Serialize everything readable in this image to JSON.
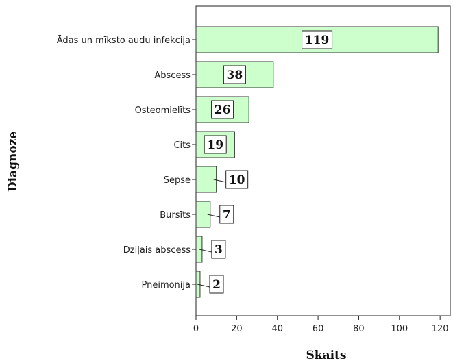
{
  "chart_data": {
    "type": "bar",
    "orientation": "horizontal",
    "categories": [
      "Ādas un mīksto audu infekcija",
      "Abscess",
      "Osteomielīts",
      "Cits",
      "Sepse",
      "Bursīts",
      "Dziļais abscess",
      "Pneimonija"
    ],
    "values": [
      119,
      38,
      26,
      19,
      10,
      7,
      3,
      2
    ],
    "xlabel": "Skaits",
    "ylabel": "Diagnoze",
    "xlim": [
      0,
      125
    ],
    "xticks": [
      0,
      20,
      40,
      60,
      80,
      100,
      120
    ],
    "grid": false,
    "bar_color": "#ccffcc",
    "bar_edge_color": "#333333"
  }
}
